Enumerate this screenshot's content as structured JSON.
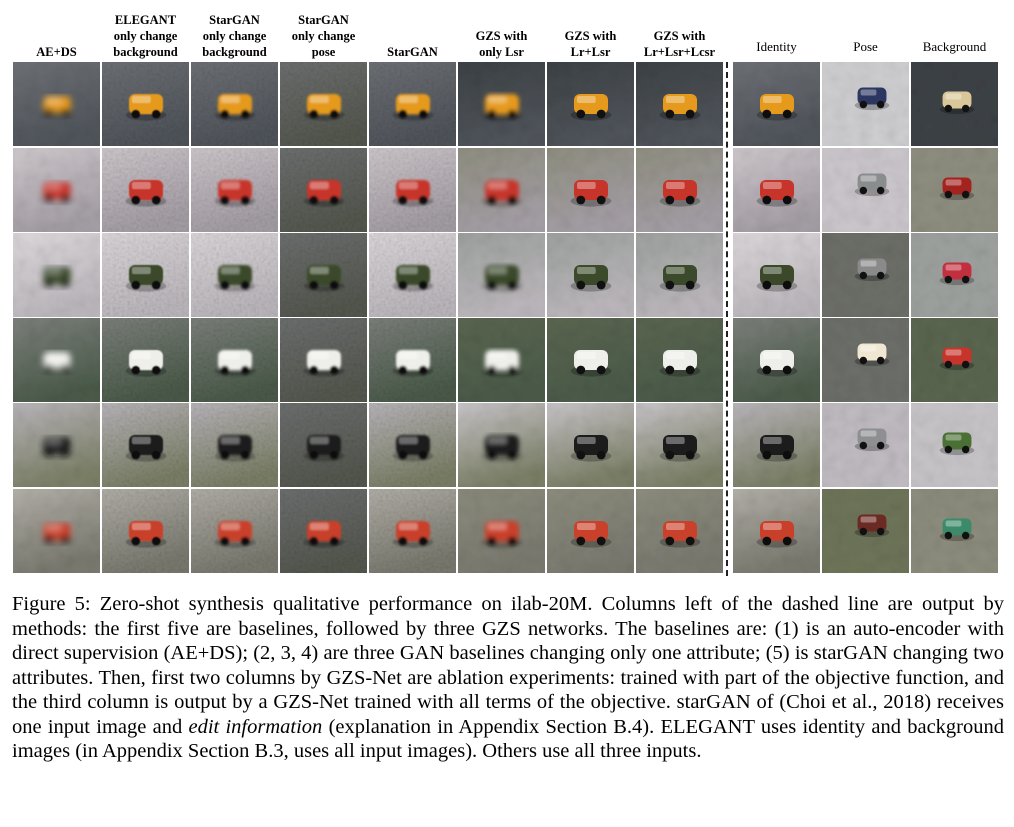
{
  "figure": {
    "columns": [
      {
        "id": "ae-ds",
        "label": "AE+DS",
        "method": true
      },
      {
        "id": "elegant",
        "label": "ELEGANT\nonly change\nbackground",
        "method": true
      },
      {
        "id": "stargan-bg",
        "label": "StarGAN\nonly change\nbackground",
        "method": true
      },
      {
        "id": "stargan-pose",
        "label": "StarGAN\nonly change\npose",
        "method": true
      },
      {
        "id": "stargan",
        "label": "StarGAN",
        "method": true
      },
      {
        "id": "gzs-lsr",
        "label": "GZS with\nonly Lsr",
        "method": true
      },
      {
        "id": "gzs-lr-lsr",
        "label": "GZS with\nLr+Lsr",
        "method": true
      },
      {
        "id": "gzs-all",
        "label": "GZS with\nLr+Lsr+Lcsr",
        "method": true
      },
      {
        "id": "identity",
        "label": "Identity",
        "method": false
      },
      {
        "id": "pose",
        "label": "Pose",
        "method": false
      },
      {
        "id": "background",
        "label": "Background",
        "method": false
      }
    ],
    "rows": [
      {
        "id": "row-1",
        "subject": "yellow school bus",
        "colors": {
          "obj": "#e59a1e",
          "bg_top": "#6e7176",
          "bg_bottom": "#50555b",
          "pose_obj": "#2b3760",
          "pose_bg": "#cfcfd2",
          "bg_obj": "#d9c79a",
          "bg_scene": "#3d4246"
        }
      },
      {
        "id": "row-2",
        "subject": "red white green car",
        "colors": {
          "obj": "#c7342a",
          "bg_top": "#cfc8cd",
          "bg_bottom": "#a59fa6",
          "pose_obj": "#8a8d8e",
          "pose_bg": "#ccc7cc",
          "bg_obj": "#a3231f",
          "bg_scene": "#8f8f80"
        }
      },
      {
        "id": "row-3",
        "subject": "green tank",
        "colors": {
          "obj": "#3b4a2a",
          "bg_top": "#dcd8dc",
          "bg_bottom": "#bdb8bd",
          "pose_obj": "#8a8a8a",
          "pose_bg": "#6d6f68",
          "bg_obj": "#c23040",
          "bg_scene": "#9ea29f"
        }
      },
      {
        "id": "row-4",
        "subject": "white bus",
        "colors": {
          "obj": "#eeeeea",
          "bg_top": "#7d817c",
          "bg_bottom": "#4b5b4a",
          "pose_obj": "#efe7d2",
          "pose_bg": "#6d6f6a",
          "bg_obj": "#c7342a",
          "bg_scene": "#5b6650"
        }
      },
      {
        "id": "row-5",
        "subject": "white black monster truck",
        "colors": {
          "obj": "#1c1c1c",
          "bg_top": "#b9b6bb",
          "bg_bottom": "#7c8067",
          "pose_obj": "#8d8f92",
          "pose_bg": "#c0bcc2",
          "bg_obj": "#4a7035",
          "bg_scene": "#c8c5c9"
        }
      },
      {
        "id": "row-6",
        "subject": "red pickup truck",
        "colors": {
          "obj": "#c9412a",
          "bg_top": "#b3b0a8",
          "bg_bottom": "#7a7a70",
          "pose_obj": "#6b2a24",
          "pose_bg": "#6e7559",
          "bg_obj": "#3c8a6a",
          "bg_scene": "#8d8d7e"
        }
      }
    ],
    "divider": "dashed"
  },
  "caption": {
    "lead": "Figure 5: Zero-shot synthesis qualitative performance on ilab-20M. Columns left of the dashed line are output by methods: the first five are baselines, followed by three GZS networks. The baselines are: (1) is an auto-encoder with direct supervision (AE+DS); (2, 3, 4) are three GAN baselines changing only one attribute; (5) is starGAN changing two attributes. Then, first two columns by GZS-Net are ablation experiments: trained with part of the objective function, and the third column is output by a GZS-Net trained with all terms of the objective. starGAN of (Choi et al., 2018) receives one input image and ",
    "emphasis": "edit information",
    "tail": " (explanation in Appendix Section B.4). ELEGANT uses identity and background images (in Appendix Section B.3, uses all input images). Others use all three inputs."
  }
}
